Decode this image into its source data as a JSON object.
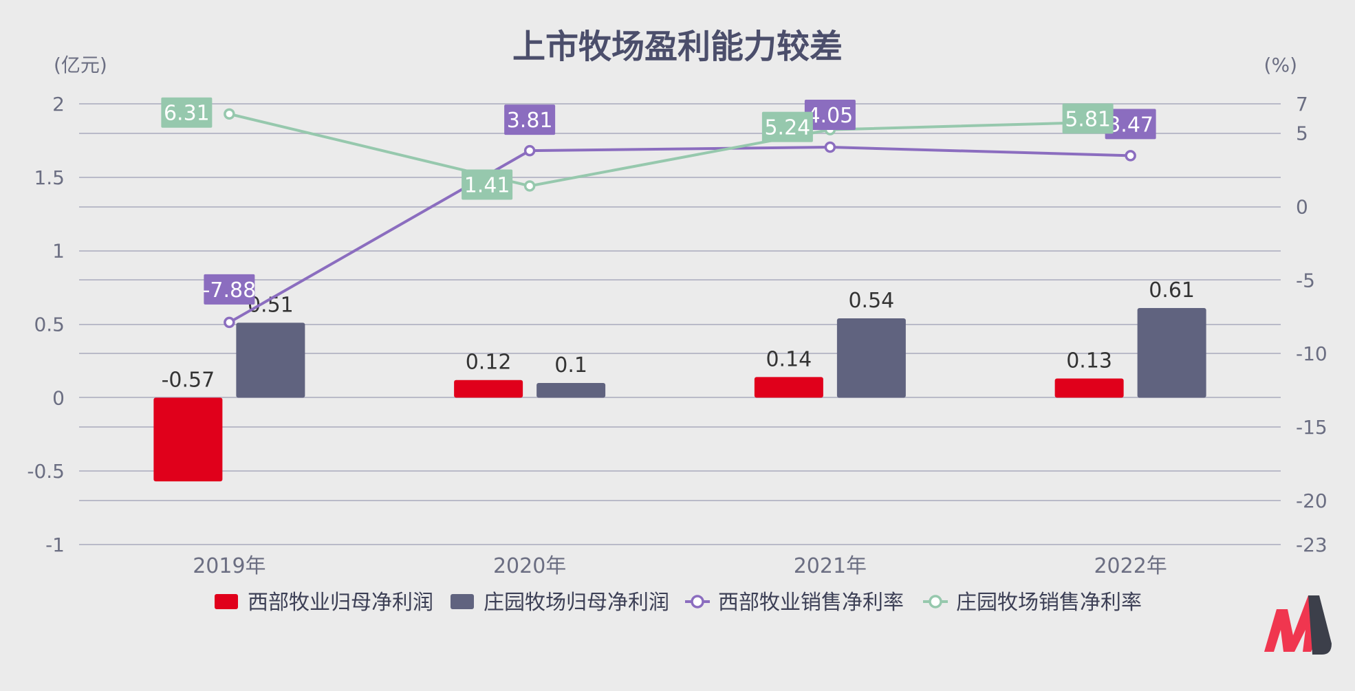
{
  "chart_data": {
    "type": "bar",
    "title": "上市牧场盈利能力较差",
    "left_axis": {
      "unit": "(亿元)",
      "ylim": [
        -1,
        2
      ],
      "ticks": [
        2,
        1.5,
        1,
        0.5,
        0,
        -0.5,
        -1
      ],
      "tick_labels": [
        "2",
        "1.5",
        "1",
        "0.5",
        "0",
        "-0.5",
        "-1"
      ]
    },
    "right_axis": {
      "unit": "(%)",
      "ylim": [
        -23,
        7
      ],
      "ticks": [
        7,
        5,
        0,
        -5,
        -10,
        -15,
        -20,
        -23
      ],
      "tick_labels": [
        "7",
        "5",
        "0",
        "-5",
        "-10",
        "-15",
        "-20",
        "-23"
      ]
    },
    "categories": [
      "2019年",
      "2020年",
      "2021年",
      "2022年"
    ],
    "bar_series": [
      {
        "name": "西部牧业归母净利润",
        "values": [
          -0.57,
          0.12,
          0.14,
          0.13
        ],
        "labels": [
          "-0.57",
          "0.12",
          "0.14",
          "0.13"
        ],
        "color": "#e0001b"
      },
      {
        "name": "庄园牧场归母净利润",
        "values": [
          0.51,
          0.1,
          0.54,
          0.61
        ],
        "labels": [
          "0.51",
          "0.1",
          "0.54",
          "0.61"
        ],
        "color": "#60637f"
      }
    ],
    "line_series": [
      {
        "name": "西部牧业销售净利率",
        "values": [
          -7.88,
          3.81,
          4.05,
          3.47
        ],
        "labels": [
          "-7.88",
          "3.81",
          "4.05",
          "3.47"
        ],
        "color": "#8b6dbf"
      },
      {
        "name": "庄园牧场销售净利率",
        "values": [
          6.31,
          1.41,
          5.24,
          5.81
        ],
        "labels": [
          "6.31",
          "1.41",
          "5.24",
          "5.81"
        ],
        "color": "#96c8ad"
      }
    ],
    "grid": true,
    "legend_position": "bottom"
  },
  "colors": {
    "background": "#ebebeb",
    "grid": "#b9bac8",
    "text": "#6b6e82",
    "title": "#4b4e6b"
  },
  "logo": {
    "name": "brand-logo-icon"
  }
}
